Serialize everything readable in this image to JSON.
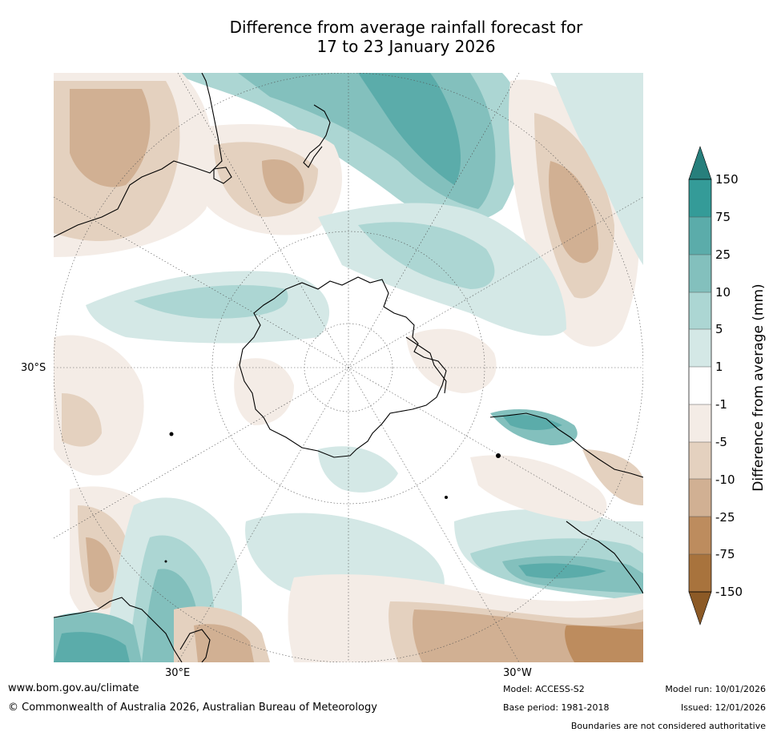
{
  "title": {
    "line1": "Difference from average rainfall forecast for",
    "line2": "17 to 23 January 2026"
  },
  "map": {
    "projection": "south-polar-stereographic",
    "lat_label": "30°S",
    "lon_labels": [
      "30°E",
      "30°W"
    ]
  },
  "colorbar": {
    "title": "Difference from average (mm)",
    "ticks": [
      "150",
      "75",
      "25",
      "10",
      "5",
      "1",
      "-1",
      "-5",
      "-10",
      "-25",
      "-75",
      "-150"
    ],
    "colors": {
      "over": "#277f7c",
      "75_150": "#349b98",
      "25_75": "#5bacaa",
      "10_25": "#83c0bd",
      "5_10": "#acd6d3",
      "1_5": "#d4e8e6",
      "neutral": "#ffffff",
      "m5_m1": "#f4ece6",
      "m10_m5": "#e4d1bf",
      "m25_m10": "#d1b093",
      "m75_m25": "#bd8c5e",
      "m150_m75": "#a8733d",
      "under": "#8c5a26"
    }
  },
  "footer": {
    "url": "www.bom.gov.au/climate",
    "copyright": "© Commonwealth of Australia 2026, Australian Bureau of Meteorology",
    "model": "Model: ACCESS-S2",
    "base_period": "Base period: 1981-2018",
    "model_run": "Model run: 10/01/2026",
    "issued": "Issued: 12/01/2026",
    "disclaimer": "Boundaries are not considered authoritative"
  }
}
